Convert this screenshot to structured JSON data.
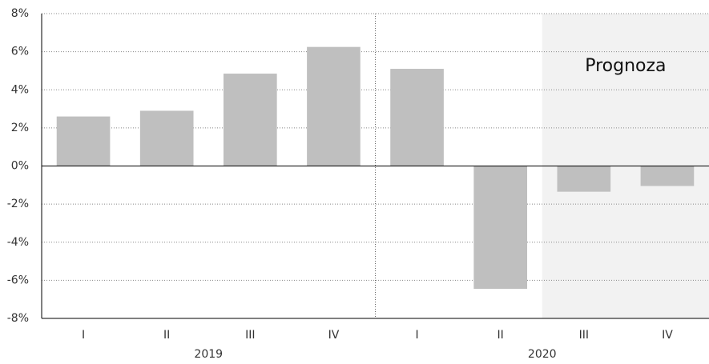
{
  "chart_data": {
    "type": "bar",
    "color": "#bfbfbf",
    "groups": [
      {
        "name": "2019",
        "categories": [
          "I",
          "II",
          "III",
          "IV"
        ],
        "values": [
          2.6,
          2.9,
          4.85,
          6.25
        ]
      },
      {
        "name": "2020",
        "categories": [
          "I",
          "II",
          "III",
          "IV"
        ],
        "values": [
          5.1,
          -6.45,
          -1.35,
          -1.05
        ]
      }
    ],
    "annotation": "Prognoza",
    "ylim": [
      -8,
      8
    ],
    "yticks": [
      {
        "value": -8,
        "label": "-8%"
      },
      {
        "value": -6,
        "label": "-6%"
      },
      {
        "value": -4,
        "label": "-4%"
      },
      {
        "value": -2,
        "label": "-2%"
      },
      {
        "value": 0,
        "label": "0%"
      },
      {
        "value": 2,
        "label": "2%"
      },
      {
        "value": 4,
        "label": "4%"
      },
      {
        "value": 6,
        "label": "6%"
      },
      {
        "value": 8,
        "label": "8%"
      }
    ],
    "grid": true
  }
}
